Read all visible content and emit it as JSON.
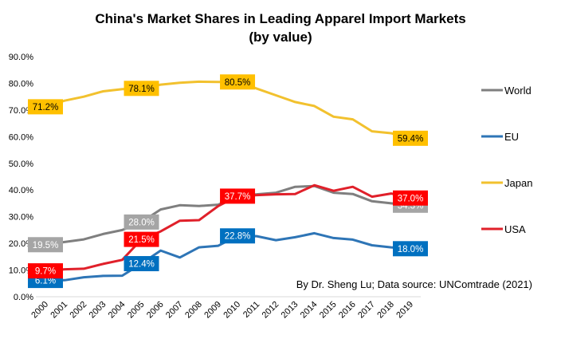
{
  "chart_data": {
    "type": "line",
    "title": "China's Market Shares in Leading Apparel Import Markets",
    "subtitle": "(by value)",
    "xlabel": "",
    "ylabel": "",
    "x": [
      "2000",
      "2001",
      "2002",
      "2003",
      "2004",
      "2005",
      "2006",
      "2007",
      "2008",
      "2009",
      "2010",
      "2011",
      "2012",
      "2013",
      "2014",
      "2015",
      "2016",
      "2017",
      "2018",
      "2019"
    ],
    "ylim": [
      0,
      90
    ],
    "yticks": [
      "0.0%",
      "10.0%",
      "20.0%",
      "30.0%",
      "40.0%",
      "50.0%",
      "60.0%",
      "70.0%",
      "80.0%",
      "90.0%"
    ],
    "grid": false,
    "legend_position": "right",
    "series": [
      {
        "name": "World",
        "color": "#7f7f7f",
        "label_text_color": "#ffffff",
        "values": [
          19.5,
          20.5,
          21.5,
          23.5,
          25.0,
          28.0,
          32.7,
          34.3,
          34.0,
          34.5,
          38.0,
          38.4,
          39.0,
          41.2,
          41.5,
          39.0,
          38.5,
          35.8,
          35.0,
          34.3
        ],
        "data_labels": [
          {
            "index": 0,
            "text": "19.5%"
          },
          {
            "index": 5,
            "text": "28.0%"
          },
          {
            "index": 19,
            "text": "34.3%"
          }
        ],
        "label_bg": "#a5a5a5"
      },
      {
        "name": "EU",
        "color": "#2e75b6",
        "label_text_color": "#ffffff",
        "values": [
          6.1,
          6.2,
          7.3,
          7.8,
          7.9,
          12.4,
          17.3,
          14.7,
          18.5,
          19.1,
          22.8,
          22.7,
          21.2,
          22.3,
          23.8,
          22.0,
          21.4,
          19.3,
          18.5,
          18.0
        ],
        "data_labels": [
          {
            "index": 0,
            "text": "6.1%"
          },
          {
            "index": 5,
            "text": "12.4%"
          },
          {
            "index": 10,
            "text": "22.8%"
          },
          {
            "index": 19,
            "text": "18.0%"
          }
        ],
        "label_bg": "#0070c0"
      },
      {
        "name": "Japan",
        "color": "#f2c12e",
        "label_text_color": "#000000",
        "values": [
          71.2,
          73.5,
          75.0,
          77.0,
          77.8,
          78.1,
          79.5,
          80.2,
          80.6,
          80.5,
          80.5,
          78.0,
          75.5,
          73.0,
          71.5,
          67.5,
          66.5,
          62.0,
          61.3,
          59.4
        ],
        "data_labels": [
          {
            "index": 0,
            "text": "71.2%"
          },
          {
            "index": 5,
            "text": "78.1%"
          },
          {
            "index": 10,
            "text": "80.5%"
          },
          {
            "index": 19,
            "text": "59.4%"
          }
        ],
        "label_bg": "#ffc000"
      },
      {
        "name": "USA",
        "color": "#e0202a",
        "label_text_color": "#ffffff",
        "values": [
          9.7,
          10.3,
          10.5,
          12.3,
          13.8,
          21.5,
          24.5,
          28.5,
          28.7,
          34.0,
          37.7,
          38.1,
          38.4,
          38.5,
          41.8,
          39.7,
          41.2,
          37.5,
          38.7,
          37.0
        ],
        "data_labels": [
          {
            "index": 0,
            "text": "9.7%"
          },
          {
            "index": 5,
            "text": "21.5%"
          },
          {
            "index": 10,
            "text": "37.7%"
          },
          {
            "index": 19,
            "text": "37.0%"
          }
        ],
        "label_bg": "#ff0000"
      }
    ],
    "annotation": "By Dr. Sheng Lu; Data source: UNComtrade (2021)"
  }
}
